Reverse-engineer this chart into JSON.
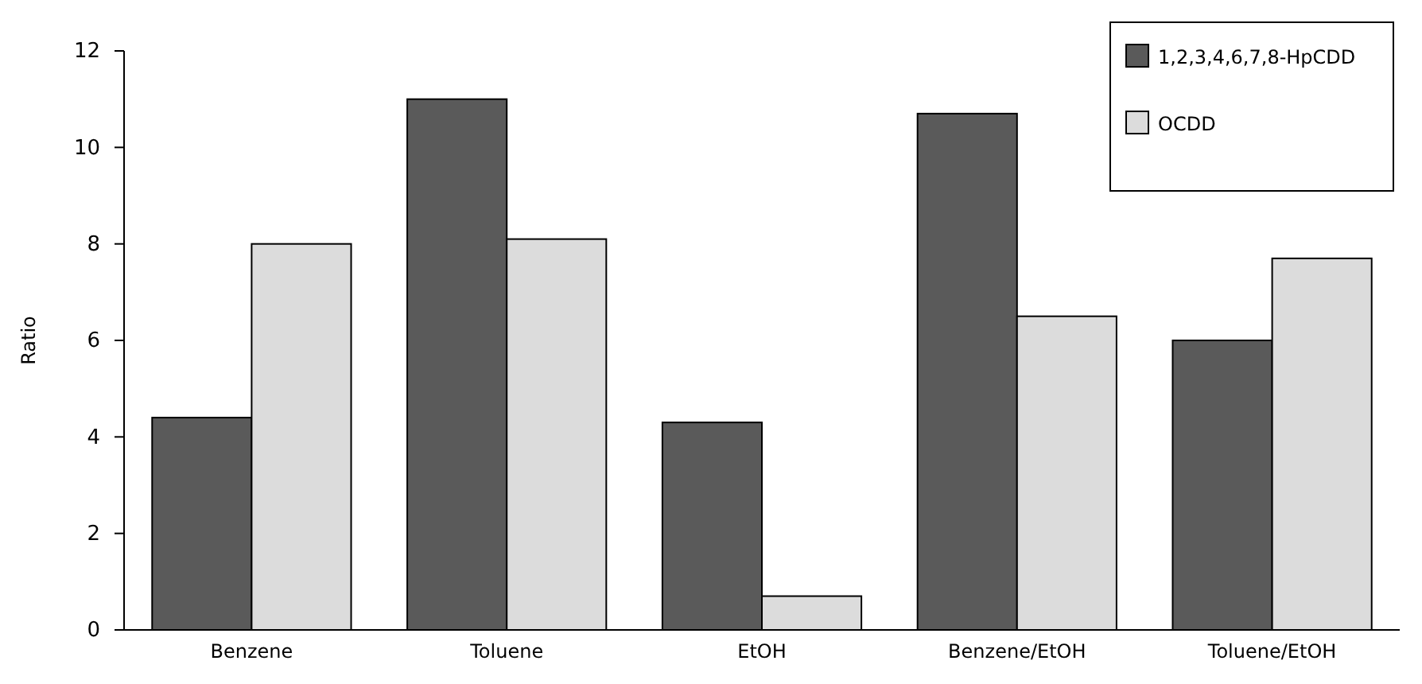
{
  "chart_data": {
    "type": "bar",
    "ylabel": "Ratio",
    "categories": [
      "Benzene",
      "Toluene",
      "EtOH",
      "Benzene/EtOH",
      "Toluene/EtOH"
    ],
    "series": [
      {
        "name": "1,2,3,4,6,7,8-HpCDD",
        "color": "#5a5a5a",
        "values": [
          4.4,
          11.0,
          4.3,
          10.7,
          6.0
        ]
      },
      {
        "name": "OCDD",
        "color": "#dcdcdc",
        "values": [
          8.0,
          8.1,
          0.7,
          6.5,
          7.7
        ]
      }
    ],
    "ylim": [
      0,
      12
    ],
    "yticks": [
      0,
      2,
      4,
      6,
      8,
      10,
      12
    ],
    "legend": "top right"
  }
}
